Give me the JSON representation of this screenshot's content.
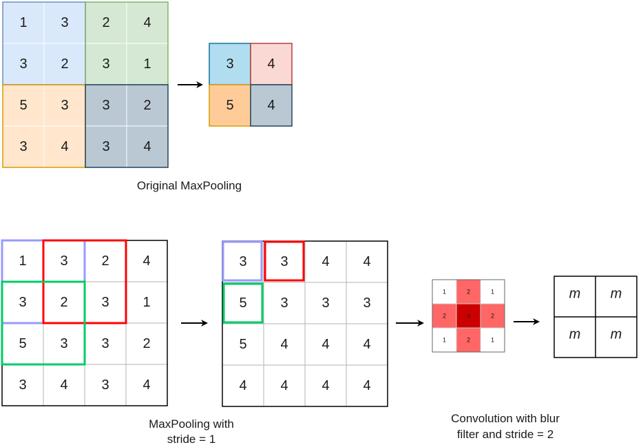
{
  "top": {
    "input_grid": [
      [
        "1",
        "3",
        "2",
        "4"
      ],
      [
        "3",
        "2",
        "3",
        "1"
      ],
      [
        "5",
        "3",
        "3",
        "2"
      ],
      [
        "3",
        "4",
        "3",
        "4"
      ]
    ],
    "quadrants": [
      {
        "fill": "#dae8fc",
        "stroke": "#6c8ebf"
      },
      {
        "fill": "#d5e8d4",
        "stroke": "#82b366"
      },
      {
        "fill": "#ffe6cc",
        "stroke": "#d79b00"
      },
      {
        "fill": "#bac8d3",
        "stroke": "#23445d"
      }
    ],
    "output_grid": [
      [
        "3",
        "4"
      ],
      [
        "5",
        "4"
      ]
    ],
    "output_cells": [
      {
        "fill": "#b1ddf0",
        "stroke": "#10739e"
      },
      {
        "fill": "#fad9d5",
        "stroke": "#ae4132"
      },
      {
        "fill": "#ffcc99",
        "stroke": "#d79b00"
      },
      {
        "fill": "#bac8d3",
        "stroke": "#23445d"
      }
    ],
    "caption": "Original MaxPooling"
  },
  "bottom": {
    "input_grid": [
      [
        "1",
        "3",
        "2",
        "4"
      ],
      [
        "3",
        "2",
        "3",
        "1"
      ],
      [
        "5",
        "3",
        "3",
        "2"
      ],
      [
        "3",
        "4",
        "3",
        "4"
      ]
    ],
    "pooled_grid": [
      [
        "3",
        "3",
        "4",
        "4"
      ],
      [
        "5",
        "3",
        "3",
        "3"
      ],
      [
        "5",
        "4",
        "4",
        "4"
      ],
      [
        "4",
        "4",
        "4",
        "4"
      ]
    ],
    "window_colors": {
      "first": "#9999ff",
      "second": "#ff0000",
      "third": "#00cc66"
    },
    "caption_line1": "MaxPooling with",
    "caption_line2": "stride = 1",
    "blur_filter": [
      [
        "1",
        "2",
        "1"
      ],
      [
        "2",
        "4",
        "2"
      ],
      [
        "1",
        "2",
        "1"
      ]
    ],
    "blur_fills": [
      [
        "#ffffff",
        "#ff6666",
        "#ffffff"
      ],
      [
        "#ff6666",
        "#cc0000",
        "#ff6666"
      ],
      [
        "#ffffff",
        "#ff6666",
        "#ffffff"
      ]
    ],
    "conv_caption_line1": "Convolution with blur",
    "conv_caption_line2": "filter and stride = 2",
    "output_grid": [
      [
        "m",
        "m"
      ],
      [
        "m",
        "m"
      ]
    ]
  },
  "colors": {
    "grid_line": "#b3b3b3",
    "border": "#000000",
    "text": "#1a1a1a"
  }
}
